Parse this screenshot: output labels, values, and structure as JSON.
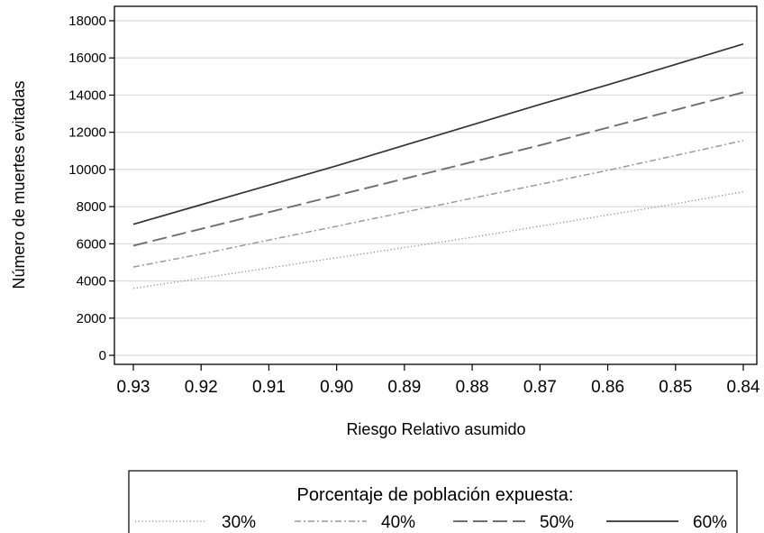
{
  "chart_data": {
    "type": "line",
    "xlabel": "Riesgo Relativo asumido",
    "ylabel": "Número de muertes evitadas",
    "x": [
      "0.93",
      "0.92",
      "0.91",
      "0.90",
      "0.89",
      "0.88",
      "0.87",
      "0.86",
      "0.85",
      "0.84"
    ],
    "x_reversed": true,
    "ylim": [
      0,
      18000
    ],
    "yticks": [
      "0",
      "2000",
      "4000",
      "6000",
      "8000",
      "10000",
      "12000",
      "14000",
      "16000",
      "18000"
    ],
    "grid": "horizontal",
    "legend": {
      "title": "Porcentaje de población expuesta:",
      "position": "bottom"
    },
    "series": [
      {
        "name": "30%",
        "style": "dotted",
        "color": "#8c8c8c",
        "values": [
          3600,
          4150,
          4700,
          5250,
          5800,
          6350,
          6950,
          7550,
          8150,
          8800
        ]
      },
      {
        "name": "40%",
        "style": "dash-dot",
        "color": "#9a9a9a",
        "values": [
          4750,
          5450,
          6200,
          6950,
          7700,
          8450,
          9200,
          9950,
          10750,
          11550
        ]
      },
      {
        "name": "50%",
        "style": "long-dash",
        "color": "#6e6e6e",
        "values": [
          5900,
          6800,
          7700,
          8600,
          9500,
          10400,
          11300,
          12250,
          13200,
          14150
        ]
      },
      {
        "name": "60%",
        "style": "solid",
        "color": "#333333",
        "values": [
          7050,
          8100,
          9150,
          10200,
          11300,
          12400,
          13500,
          14550,
          15650,
          16750
        ]
      }
    ]
  }
}
